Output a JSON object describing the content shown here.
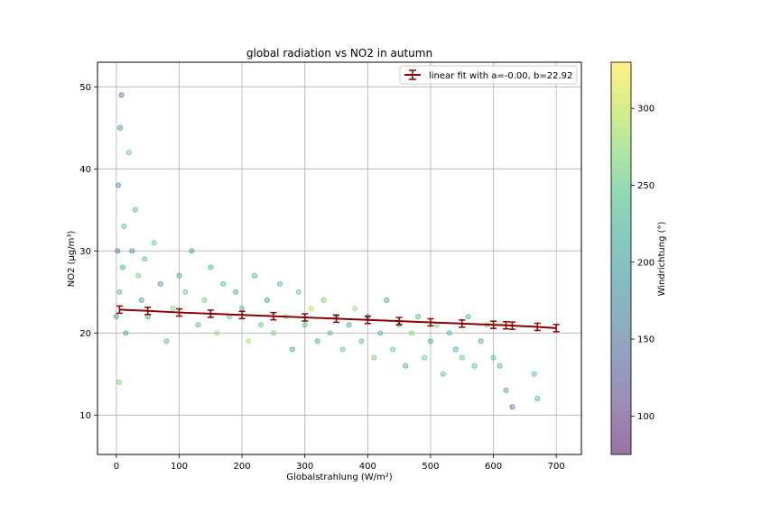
{
  "chart_data": {
    "type": "scatter",
    "title": "global radiation vs NO2 in autumn",
    "xlabel": "Globalstrahlung (W/m²)",
    "ylabel": "NO2 (µg/m³)",
    "xlim": [
      -30,
      740
    ],
    "ylim": [
      5.2,
      53
    ],
    "xticks": [
      0,
      100,
      200,
      300,
      400,
      500,
      600,
      700
    ],
    "yticks": [
      10,
      20,
      30,
      40,
      50
    ],
    "grid": true,
    "legend": {
      "placement": "top-right",
      "label": "linear fit with a=-0.00, b=22.92"
    },
    "colorbar": {
      "label": "Windrichtung (°)",
      "range": [
        75,
        330
      ],
      "ticks": [
        100,
        150,
        200,
        250,
        300
      ],
      "colormap": [
        "#440154",
        "#482878",
        "#3e4a89",
        "#31688e",
        "#26828e",
        "#1f9e89",
        "#35b779",
        "#6ece58",
        "#b5de2b",
        "#fde725"
      ]
    },
    "fit_line": {
      "x": [
        5,
        50,
        100,
        150,
        200,
        250,
        300,
        350,
        400,
        450,
        500,
        550,
        600,
        620,
        630,
        670,
        700
      ],
      "y": [
        22.85,
        22.7,
        22.5,
        22.35,
        22.2,
        22.05,
        21.9,
        21.75,
        21.6,
        21.45,
        21.3,
        21.15,
        21.0,
        20.95,
        20.9,
        20.75,
        20.6
      ],
      "color": "#8b0000"
    },
    "series": [
      {
        "values_sample": {
          "x": [
            0,
            2,
            5,
            3,
            4,
            6,
            8,
            10,
            12,
            15,
            20,
            25,
            30,
            35,
            40,
            45,
            50,
            60,
            70,
            80,
            90,
            100,
            110,
            120,
            130,
            140,
            150,
            160,
            170,
            180,
            190,
            200,
            210,
            220,
            230,
            240,
            250,
            260,
            270,
            280,
            290,
            300,
            310,
            320,
            330,
            340,
            350,
            360,
            370,
            380,
            390,
            400,
            410,
            420,
            430,
            440,
            450,
            460,
            470,
            480,
            490,
            500,
            510,
            520,
            530,
            540,
            550,
            560,
            570,
            580,
            590,
            600,
            610,
            620,
            630,
            665,
            670
          ],
          "y": [
            22,
            30,
            25,
            38,
            14,
            45,
            49,
            28,
            33,
            20,
            42,
            30,
            35,
            27,
            24,
            29,
            22,
            31,
            26,
            19,
            23,
            27,
            25,
            30,
            21,
            24,
            28,
            20,
            26,
            22,
            25,
            23,
            19,
            27,
            21,
            24,
            20,
            26,
            22,
            18,
            25,
            21,
            23,
            19,
            24,
            20,
            22,
            18,
            21,
            23,
            19,
            22,
            17,
            20,
            24,
            18,
            21,
            16,
            20,
            22,
            17,
            19,
            21,
            15,
            20,
            18,
            17,
            22,
            16,
            19,
            21,
            17,
            16,
            13,
            11,
            15,
            12
          ],
          "c": [
            200,
            150,
            230,
            180,
            260,
            170,
            150,
            220,
            240,
            210,
            250,
            190,
            230,
            260,
            200,
            240,
            210,
            250,
            190,
            230,
            270,
            210,
            250,
            200,
            240,
            260,
            220,
            280,
            230,
            250,
            210,
            240,
            290,
            220,
            250,
            200,
            260,
            230,
            280,
            210,
            250,
            240,
            300,
            220,
            260,
            240,
            230,
            250,
            210,
            280,
            240,
            220,
            260,
            230,
            200,
            250,
            240,
            210,
            270,
            230,
            250,
            220,
            260,
            240,
            230,
            210,
            250,
            230,
            240,
            220,
            260,
            240,
            230,
            200,
            150,
            240,
            230
          ]
        }
      }
    ]
  }
}
